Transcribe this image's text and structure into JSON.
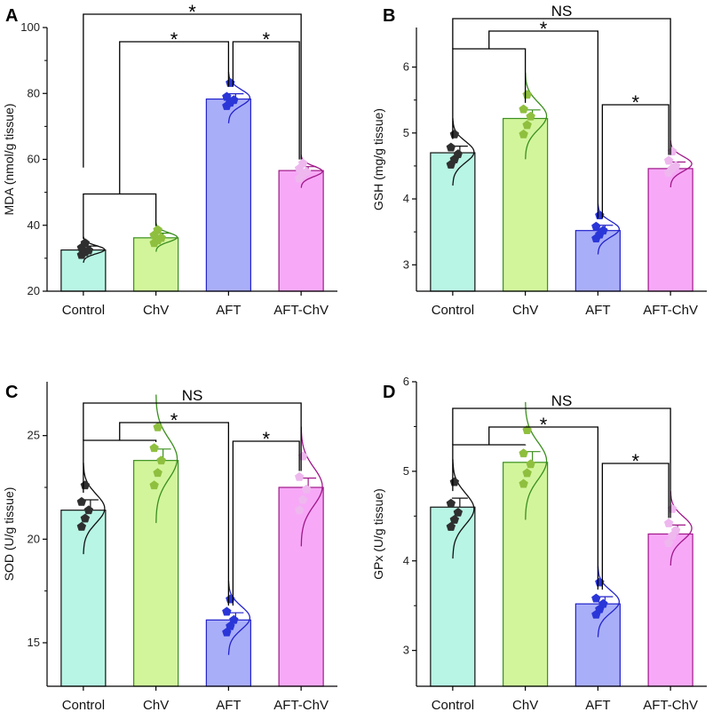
{
  "chart_data": [
    {
      "panel": "A",
      "type": "bar",
      "categories": [
        "Control",
        "ChV",
        "AFT",
        "AFT-ChV"
      ],
      "values": [
        32.5,
        36.2,
        78.3,
        56.6
      ],
      "errors": [
        1.2,
        1.4,
        1.6,
        1.2
      ],
      "points": [
        [
          31.0,
          31.8,
          32.4,
          33.2,
          34.6
        ],
        [
          34.6,
          35.4,
          36.2,
          37.0,
          38.6
        ],
        [
          76.2,
          77.2,
          78.0,
          79.0,
          83.2
        ],
        [
          54.2,
          55.4,
          56.2,
          57.2,
          58.8
        ]
      ],
      "ylabel": "MDA (nmol/g tissue)",
      "ylim": [
        20,
        100
      ],
      "yticks": [
        20,
        40,
        60,
        80,
        100
      ],
      "brackets": [
        {
          "label": "*",
          "from": "Control",
          "to": "AFT-ChV",
          "level": 0
        },
        {
          "label": "*",
          "from": "Control|ChV",
          "to": "AFT",
          "level": 1
        },
        {
          "label": "*",
          "from": "AFT",
          "to": "AFT-ChV",
          "level": 1
        }
      ]
    },
    {
      "panel": "B",
      "type": "bar",
      "categories": [
        "Control",
        "ChV",
        "AFT",
        "AFT-ChV"
      ],
      "values": [
        4.7,
        5.22,
        3.52,
        4.46
      ],
      "errors": [
        0.1,
        0.13,
        0.08,
        0.1
      ],
      "points": [
        [
          4.52,
          4.6,
          4.68,
          4.78,
          4.98
        ],
        [
          4.98,
          5.12,
          5.25,
          5.36,
          5.58
        ],
        [
          3.4,
          3.46,
          3.52,
          3.58,
          3.75
        ],
        [
          4.4,
          4.46,
          4.5,
          4.58,
          4.72
        ]
      ],
      "ylabel": "GSH (mg/g tissue)",
      "ylim": [
        2.6,
        6.6
      ],
      "yticks": [
        3,
        4,
        5,
        6
      ],
      "brackets": [
        {
          "label": "NS",
          "from": "Control",
          "to": "AFT-ChV",
          "level": 0
        },
        {
          "label": "*",
          "from": "Control|ChV",
          "to": "AFT",
          "level": 1
        },
        {
          "label": "*",
          "from": "AFT",
          "to": "AFT-ChV",
          "level": 2
        }
      ]
    },
    {
      "panel": "C",
      "type": "bar",
      "categories": [
        "Control",
        "ChV",
        "AFT",
        "AFT-ChV"
      ],
      "values": [
        21.4,
        23.8,
        16.1,
        22.5
      ],
      "errors": [
        0.5,
        0.55,
        0.35,
        0.45
      ],
      "points": [
        [
          20.6,
          21.0,
          21.4,
          21.8,
          22.6
        ],
        [
          22.6,
          23.2,
          23.8,
          24.4,
          25.4
        ],
        [
          15.5,
          15.8,
          16.1,
          16.5,
          17.1
        ],
        [
          21.4,
          21.9,
          22.4,
          23.0,
          24.0
        ]
      ],
      "ylabel": "SOD (U/g tissue)",
      "ylim": [
        12.9,
        27.6
      ],
      "yticks": [
        15,
        20,
        25
      ],
      "brackets": [
        {
          "label": "NS",
          "from": "Control",
          "to": "AFT-ChV",
          "level": 0
        },
        {
          "label": "*",
          "from": "Control|ChV",
          "to": "AFT",
          "level": 1
        },
        {
          "label": "*",
          "from": "AFT",
          "to": "AFT-ChV",
          "level": 2
        }
      ]
    },
    {
      "panel": "D",
      "type": "bar",
      "categories": [
        "Control",
        "ChV",
        "AFT",
        "AFT-ChV"
      ],
      "values": [
        4.6,
        5.1,
        3.52,
        4.3
      ],
      "errors": [
        0.1,
        0.12,
        0.08,
        0.1
      ],
      "points": [
        [
          4.38,
          4.46,
          4.54,
          4.64,
          4.88
        ],
        [
          4.86,
          4.98,
          5.08,
          5.2,
          5.46
        ],
        [
          3.4,
          3.46,
          3.52,
          3.58,
          3.76
        ],
        [
          4.2,
          4.28,
          4.34,
          4.42,
          4.58
        ]
      ],
      "ylabel": "GPx (U/g tissue)",
      "ylim": [
        2.6,
        6.0
      ],
      "yticks": [
        3,
        4,
        5,
        6
      ],
      "brackets": [
        {
          "label": "NS",
          "from": "Control",
          "to": "AFT-ChV",
          "level": 0
        },
        {
          "label": "*",
          "from": "Control|ChV",
          "to": "AFT",
          "level": 1
        },
        {
          "label": "*",
          "from": "AFT",
          "to": "AFT-ChV",
          "level": 2
        }
      ]
    }
  ],
  "colors": {
    "fills": [
      "#b8f5e4",
      "#d2f59c",
      "#a9aef8",
      "#f7a9f7"
    ],
    "edges": [
      "#111111",
      "#3a8f1e",
      "#2222cc",
      "#a0188a"
    ],
    "dots": [
      "#2f2f2f",
      "#8fbf3e",
      "#2a36d8",
      "#eeb8ee"
    ]
  }
}
